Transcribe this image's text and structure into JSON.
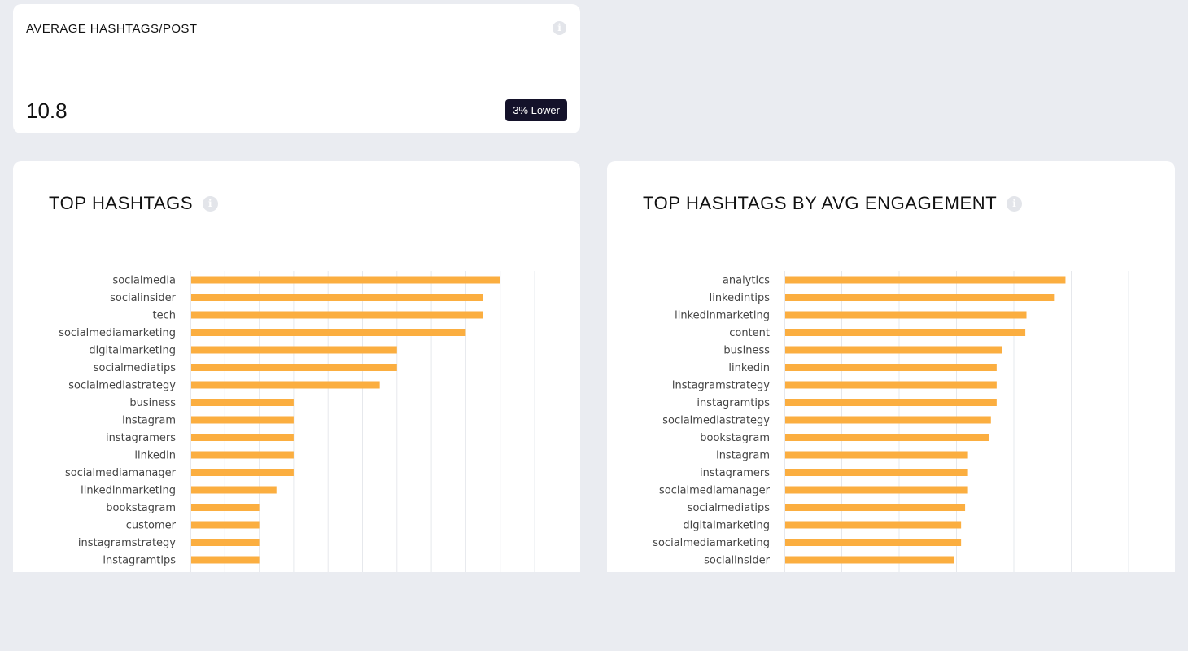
{
  "avg_card": {
    "title": "AVERAGE HASHTAGS/POST",
    "value": "10.8",
    "badge": "3% Lower",
    "info_icon": "info-icon"
  },
  "top_hashtags": {
    "title": "TOP HASHTAGS",
    "info_icon": "info-icon"
  },
  "top_engagement": {
    "title": "TOP HASHTAGS BY AVG ENGAGEMENT",
    "info_icon": "info-icon"
  },
  "chart_data": [
    {
      "type": "bar",
      "orientation": "horizontal",
      "bar_color": "#fbae40",
      "grid": true,
      "xlim": [
        0,
        10
      ],
      "categories": [
        "socialmedia",
        "socialinsider",
        "tech",
        "socialmediamarketing",
        "digitalmarketing",
        "socialmediatips",
        "socialmediastrategy",
        "business",
        "instagram",
        "instagramers",
        "linkedin",
        "socialmediamanager",
        "linkedinmarketing",
        "bookstagram",
        "customer",
        "instagramstrategy",
        "instagramtips"
      ],
      "values": [
        9,
        8.5,
        8.5,
        8,
        6,
        6,
        5.5,
        3,
        3,
        3,
        3,
        3,
        2.5,
        2,
        2,
        2,
        2
      ]
    },
    {
      "type": "bar",
      "orientation": "horizontal",
      "bar_color": "#fbae40",
      "grid": true,
      "xlim": [
        0,
        6
      ],
      "categories": [
        "analytics",
        "linkedintips",
        "linkedinmarketing",
        "content",
        "business",
        "linkedin",
        "instagramstrategy",
        "instagramtips",
        "socialmediastrategy",
        "bookstagram",
        "instagram",
        "instagramers",
        "socialmediamanager",
        "socialmediatips",
        "digitalmarketing",
        "socialmediamarketing",
        "socialinsider"
      ],
      "values": [
        4.9,
        4.7,
        4.22,
        4.2,
        3.8,
        3.7,
        3.7,
        3.7,
        3.6,
        3.56,
        3.2,
        3.2,
        3.2,
        3.15,
        3.08,
        3.08,
        2.96
      ]
    }
  ]
}
